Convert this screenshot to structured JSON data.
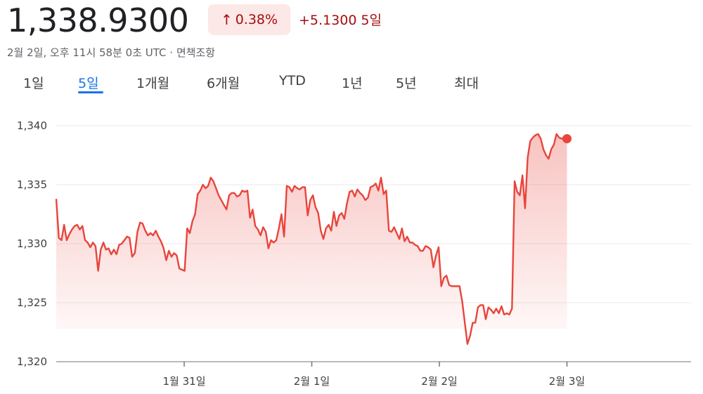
{
  "header": {
    "price": "1,338.9300",
    "change_percent": "0.38%",
    "change_arrow_icon": "arrow-up-icon",
    "change_value": "+5.1300",
    "change_period": "5일",
    "subline": "2월 2일, 오후 11시 58분 0초 UTC · 면책조항"
  },
  "tabs": [
    {
      "label": "1일"
    },
    {
      "label": "5일",
      "active": true
    },
    {
      "label": "1개월"
    },
    {
      "label": "6개월"
    },
    {
      "label": "YTD"
    },
    {
      "label": "1년"
    },
    {
      "label": "5년"
    },
    {
      "label": "최대"
    }
  ],
  "colors": {
    "line": "#e8453c",
    "negative_text": "#a50e0e",
    "badge_bg": "#fce8e6",
    "active_tab": "#1a73e8"
  },
  "chart_data": {
    "type": "area",
    "ylim": [
      1320,
      1341.5
    ],
    "y_ticks": [
      "1,320",
      "1,325",
      "1,330",
      "1,335",
      "1,340"
    ],
    "y_tick_values": [
      1320,
      1325,
      1330,
      1335,
      1340
    ],
    "x_range": [
      0,
      4.0
    ],
    "x_ticks": [
      "1월 31일",
      "2월 1일",
      "2월 2일",
      "2월 3일"
    ],
    "x_tick_values": [
      1,
      2,
      3,
      4
    ],
    "grid": true,
    "last_point_marker": true,
    "values": [
      1333.8,
      1330.5,
      1330.3,
      1331.6,
      1330.3,
      1330.8,
      1331.2,
      1331.5,
      1331.6,
      1331.2,
      1331.5,
      1330.3,
      1330.1,
      1329.7,
      1330.1,
      1329.8,
      1327.7,
      1329.5,
      1330.1,
      1329.5,
      1329.6,
      1329.1,
      1329.5,
      1329.1,
      1329.9,
      1330.0,
      1330.3,
      1330.6,
      1330.5,
      1328.9,
      1329.2,
      1331.0,
      1331.8,
      1331.7,
      1331.1,
      1330.7,
      1330.9,
      1330.7,
      1331.1,
      1330.6,
      1330.2,
      1329.6,
      1328.6,
      1329.4,
      1328.9,
      1329.2,
      1329.0,
      1327.9,
      1327.8,
      1327.7,
      1331.3,
      1330.9,
      1331.9,
      1332.5,
      1334.2,
      1334.5,
      1335.0,
      1334.7,
      1334.9,
      1335.6,
      1335.3,
      1334.7,
      1334.1,
      1333.7,
      1333.3,
      1332.9,
      1334.1,
      1334.3,
      1334.3,
      1334.0,
      1334.1,
      1334.5,
      1334.4,
      1334.5,
      1332.2,
      1332.9,
      1331.5,
      1331.2,
      1330.7,
      1331.4,
      1331.0,
      1329.6,
      1330.3,
      1330.1,
      1330.3,
      1331.3,
      1332.5,
      1330.6,
      1334.9,
      1334.8,
      1334.4,
      1334.9,
      1334.7,
      1334.6,
      1334.8,
      1334.8,
      1332.4,
      1333.7,
      1334.1,
      1333.1,
      1332.6,
      1331.1,
      1330.4,
      1331.3,
      1331.6,
      1331.1,
      1332.7,
      1331.5,
      1332.4,
      1332.6,
      1332.1,
      1333.4,
      1334.4,
      1334.5,
      1334.0,
      1334.6,
      1334.3,
      1334.1,
      1333.7,
      1333.9,
      1334.8,
      1334.9,
      1335.1,
      1334.5,
      1335.6,
      1334.2,
      1334.5,
      1331.1,
      1331.0,
      1331.4,
      1330.9,
      1330.4,
      1331.3,
      1330.2,
      1330.6,
      1330.1,
      1330.1,
      1329.9,
      1329.8,
      1329.4,
      1329.4,
      1329.8,
      1329.7,
      1329.5,
      1328.0,
      1329.0,
      1329.7,
      1326.4,
      1327.1,
      1327.3,
      1326.5,
      1326.4,
      1326.4,
      1326.4,
      1326.4,
      1325.1,
      1323.3,
      1321.5,
      1322.2,
      1323.3,
      1323.3,
      1324.6,
      1324.8,
      1324.8,
      1323.6,
      1324.6,
      1324.4,
      1324.1,
      1324.5,
      1324.1,
      1324.7,
      1324.0,
      1324.1,
      1324.0,
      1324.5,
      1335.3,
      1334.4,
      1334.1,
      1335.8,
      1333.0,
      1337.3,
      1338.7,
      1339.0,
      1339.2,
      1339.3,
      1338.9,
      1338.0,
      1337.5,
      1337.2,
      1338.0,
      1338.4,
      1339.3,
      1339.0,
      1338.9,
      1339.0,
      1338.9
    ]
  }
}
